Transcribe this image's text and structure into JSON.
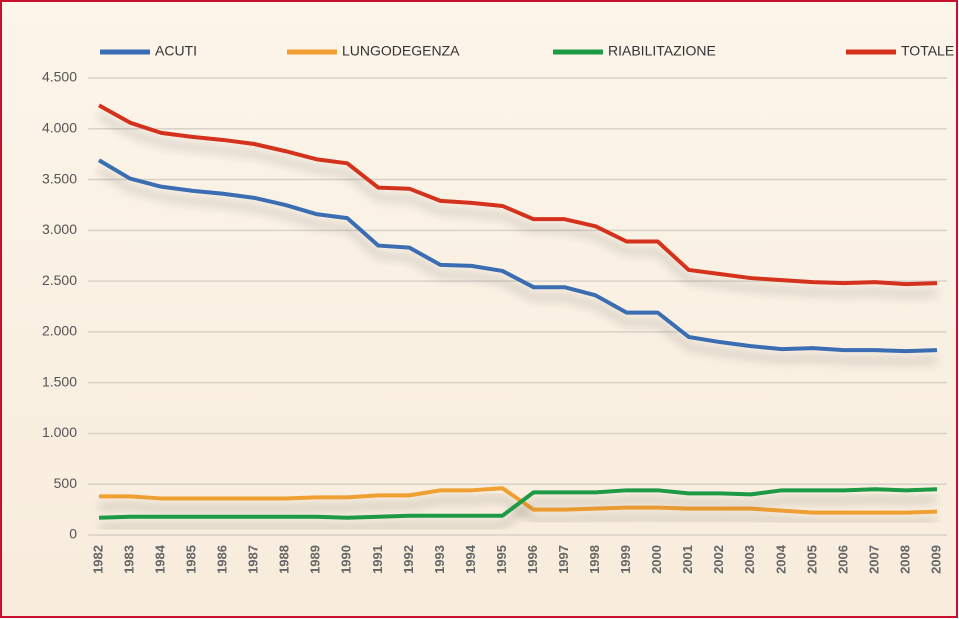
{
  "chart_data": {
    "type": "line",
    "x": [
      1982,
      1983,
      1984,
      1985,
      1986,
      1987,
      1988,
      1989,
      1990,
      1991,
      1992,
      1993,
      1994,
      1995,
      1996,
      1997,
      1998,
      1999,
      2000,
      2001,
      2002,
      2003,
      2004,
      2005,
      2006,
      2007,
      2008,
      2009
    ],
    "xlim": [
      1982,
      2009
    ],
    "series": [
      {
        "name": "ACUTI",
        "color": "#3a6db3",
        "values": [
          3690,
          3510,
          3430,
          3390,
          3360,
          3320,
          3250,
          3160,
          3120,
          2850,
          2830,
          2660,
          2650,
          2600,
          2440,
          2440,
          2360,
          2190,
          2190,
          1950,
          1900,
          1860,
          1830,
          1840,
          1820,
          1820,
          1810,
          1820
        ]
      },
      {
        "name": "LUNGODEGENZA",
        "color": "#f0a030",
        "values": [
          380,
          380,
          360,
          360,
          360,
          360,
          360,
          370,
          370,
          390,
          390,
          440,
          440,
          460,
          250,
          250,
          260,
          270,
          270,
          260,
          260,
          260,
          240,
          220,
          220,
          220,
          220,
          230
        ]
      },
      {
        "name": "RIABILITAZIONE",
        "color": "#1c9a44",
        "values": [
          170,
          180,
          180,
          180,
          180,
          180,
          180,
          180,
          170,
          180,
          190,
          190,
          190,
          190,
          420,
          420,
          420,
          440,
          440,
          410,
          410,
          400,
          440,
          440,
          440,
          450,
          440,
          450
        ]
      },
      {
        "name": "TOTALE",
        "color": "#d4301a",
        "values": [
          4230,
          4060,
          3960,
          3920,
          3890,
          3850,
          3780,
          3700,
          3660,
          3420,
          3410,
          3290,
          3270,
          3240,
          3110,
          3110,
          3040,
          2890,
          2890,
          2610,
          2570,
          2530,
          2510,
          2490,
          2480,
          2490,
          2470,
          2480
        ]
      }
    ],
    "ylim": [
      0,
      4500
    ],
    "yticks": [
      0,
      500,
      {
        "value": 1000,
        "label": "1.000"
      },
      {
        "value": 1500,
        "label": "1.500"
      },
      {
        "value": 2000,
        "label": "2.000"
      },
      {
        "value": 2500,
        "label": "2.500"
      },
      {
        "value": 3000,
        "label": "3.000"
      },
      {
        "value": 3500,
        "label": "3.500"
      },
      {
        "value": 4000,
        "label": "4.000"
      },
      {
        "value": 4500,
        "label": "4.500"
      }
    ],
    "grid": true,
    "legend": "top"
  }
}
